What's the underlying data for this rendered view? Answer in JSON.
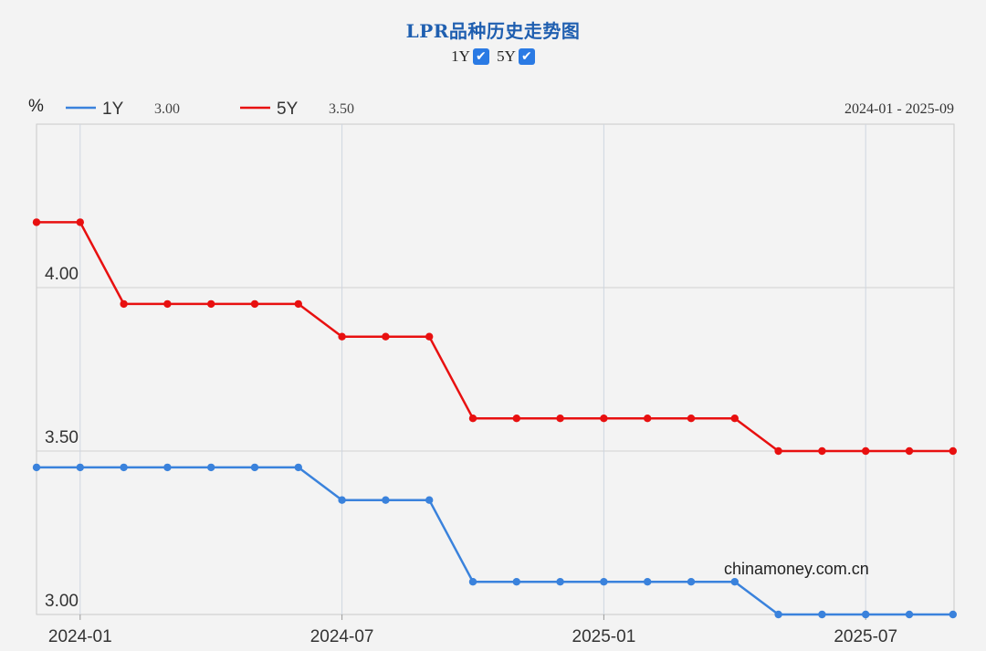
{
  "title": "LPR品种历史走势图",
  "toggles": [
    {
      "label": "1Y",
      "checked": true
    },
    {
      "label": "5Y",
      "checked": true
    }
  ],
  "legend": {
    "unit": "%",
    "items": [
      {
        "name": "1Y",
        "value": "3.00",
        "color": "#3a82dc"
      },
      {
        "name": "5Y",
        "value": "3.50",
        "color": "#e81010"
      }
    ]
  },
  "range_label": "2024-01 - 2025-09",
  "watermark": "chinamoney.com.cn",
  "chart_data": {
    "type": "line",
    "x": [
      "2023-12",
      "2024-01",
      "2024-02",
      "2024-03",
      "2024-04",
      "2024-05",
      "2024-06",
      "2024-07",
      "2024-08",
      "2024-09",
      "2024-10",
      "2024-11",
      "2024-12",
      "2025-01",
      "2025-02",
      "2025-03",
      "2025-04",
      "2025-05",
      "2025-06",
      "2025-07",
      "2025-08",
      "2025-09"
    ],
    "series": [
      {
        "name": "1Y",
        "color": "#3a82dc",
        "values": [
          3.45,
          3.45,
          3.45,
          3.45,
          3.45,
          3.45,
          3.45,
          3.35,
          3.35,
          3.35,
          3.1,
          3.1,
          3.1,
          3.1,
          3.1,
          3.1,
          3.1,
          3.0,
          3.0,
          3.0,
          3.0,
          3.0
        ]
      },
      {
        "name": "5Y",
        "color": "#e81010",
        "values": [
          4.2,
          4.2,
          3.95,
          3.95,
          3.95,
          3.95,
          3.95,
          3.85,
          3.85,
          3.85,
          3.6,
          3.6,
          3.6,
          3.6,
          3.6,
          3.6,
          3.6,
          3.5,
          3.5,
          3.5,
          3.5,
          3.5
        ]
      }
    ],
    "ylim": [
      3.0,
      4.5
    ],
    "yticks": [
      "3.00",
      "3.50",
      "4.00"
    ],
    "xticks": [
      "2024-01",
      "2024-07",
      "2025-01",
      "2025-07"
    ],
    "ylabel": "%",
    "grid": true
  }
}
